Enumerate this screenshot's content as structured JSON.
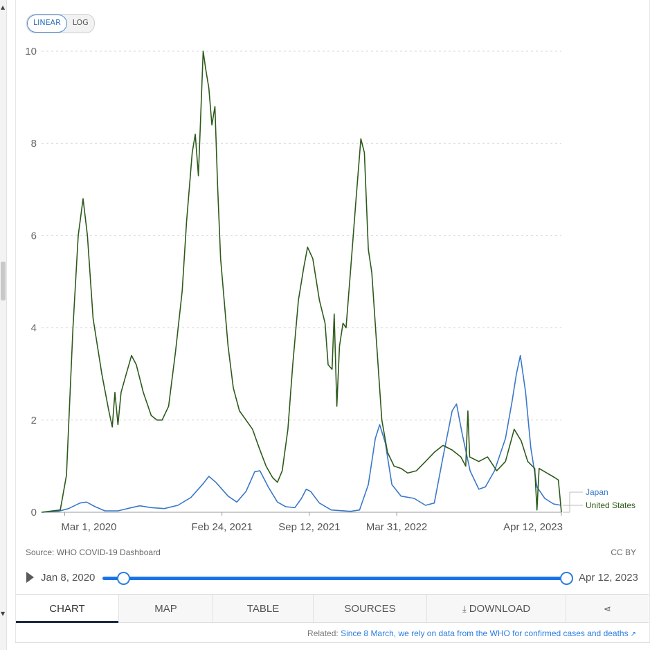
{
  "scale_toggle": {
    "linear_label": "LINEAR",
    "log_label": "LOG",
    "selected": "LINEAR"
  },
  "chart_data": {
    "type": "line",
    "title": "",
    "xlabel": "",
    "ylabel": "",
    "ylim": [
      0,
      10
    ],
    "yticks": [
      0,
      2,
      4,
      6,
      8,
      10
    ],
    "x_ticks": [
      {
        "date": "2020-03-01",
        "label": "Mar 1, 2020"
      },
      {
        "date": "2021-02-24",
        "label": "Feb 24, 2021"
      },
      {
        "date": "2021-09-12",
        "label": "Sep 12, 2021"
      },
      {
        "date": "2022-03-31",
        "label": "Mar 31, 2022"
      },
      {
        "date": "2023-04-12",
        "label": "Apr 12, 2023"
      }
    ],
    "xlim": [
      "2020-01-08",
      "2023-04-12"
    ],
    "grid": "horizontal-dotted",
    "series": [
      {
        "name": "United States",
        "color": "#2d5a1b",
        "points": [
          [
            "2020-01-08",
            0
          ],
          [
            "2020-02-20",
            0.05
          ],
          [
            "2020-03-05",
            0.8
          ],
          [
            "2020-03-20",
            4.0
          ],
          [
            "2020-04-01",
            6.0
          ],
          [
            "2020-04-12",
            6.8
          ],
          [
            "2020-04-22",
            6.0
          ],
          [
            "2020-05-05",
            4.2
          ],
          [
            "2020-05-25",
            3.0
          ],
          [
            "2020-06-10",
            2.2
          ],
          [
            "2020-06-18",
            1.85
          ],
          [
            "2020-06-24",
            2.6
          ],
          [
            "2020-07-01",
            1.9
          ],
          [
            "2020-07-08",
            2.6
          ],
          [
            "2020-07-20",
            3.0
          ],
          [
            "2020-08-01",
            3.4
          ],
          [
            "2020-08-12",
            3.2
          ],
          [
            "2020-08-28",
            2.6
          ],
          [
            "2020-09-15",
            2.1
          ],
          [
            "2020-09-28",
            2.0
          ],
          [
            "2020-10-10",
            2.0
          ],
          [
            "2020-10-25",
            2.3
          ],
          [
            "2020-11-10",
            3.5
          ],
          [
            "2020-11-25",
            4.8
          ],
          [
            "2020-12-05",
            6.3
          ],
          [
            "2020-12-18",
            7.8
          ],
          [
            "2020-12-25",
            8.2
          ],
          [
            "2021-01-01",
            7.3
          ],
          [
            "2021-01-06",
            8.5
          ],
          [
            "2021-01-12",
            10.0
          ],
          [
            "2021-01-18",
            9.6
          ],
          [
            "2021-01-25",
            9.2
          ],
          [
            "2021-02-01",
            8.4
          ],
          [
            "2021-02-08",
            8.8
          ],
          [
            "2021-02-14",
            7.1
          ],
          [
            "2021-02-21",
            5.5
          ],
          [
            "2021-03-01",
            4.6
          ],
          [
            "2021-03-10",
            3.6
          ],
          [
            "2021-03-22",
            2.7
          ],
          [
            "2021-04-05",
            2.2
          ],
          [
            "2021-04-20",
            2.0
          ],
          [
            "2021-05-05",
            1.8
          ],
          [
            "2021-05-20",
            1.4
          ],
          [
            "2021-06-05",
            1.0
          ],
          [
            "2021-06-20",
            0.75
          ],
          [
            "2021-07-01",
            0.65
          ],
          [
            "2021-07-12",
            0.9
          ],
          [
            "2021-07-25",
            1.8
          ],
          [
            "2021-08-05",
            3.2
          ],
          [
            "2021-08-18",
            4.6
          ],
          [
            "2021-08-30",
            5.3
          ],
          [
            "2021-09-08",
            5.75
          ],
          [
            "2021-09-20",
            5.5
          ],
          [
            "2021-10-05",
            4.6
          ],
          [
            "2021-10-18",
            4.1
          ],
          [
            "2021-10-25",
            3.2
          ],
          [
            "2021-11-03",
            3.1
          ],
          [
            "2021-11-08",
            4.3
          ],
          [
            "2021-11-14",
            2.3
          ],
          [
            "2021-11-20",
            3.6
          ],
          [
            "2021-11-28",
            4.1
          ],
          [
            "2021-12-05",
            4.0
          ],
          [
            "2021-12-15",
            5.2
          ],
          [
            "2021-12-28",
            6.8
          ],
          [
            "2022-01-08",
            8.1
          ],
          [
            "2022-01-16",
            7.8
          ],
          [
            "2022-01-25",
            5.7
          ],
          [
            "2022-02-02",
            5.2
          ],
          [
            "2022-02-12",
            3.8
          ],
          [
            "2022-02-25",
            2.0
          ],
          [
            "2022-03-10",
            1.3
          ],
          [
            "2022-03-25",
            1.0
          ],
          [
            "2022-04-10",
            0.95
          ],
          [
            "2022-04-25",
            0.85
          ],
          [
            "2022-05-15",
            0.9
          ],
          [
            "2022-06-05",
            1.1
          ],
          [
            "2022-06-25",
            1.3
          ],
          [
            "2022-07-15",
            1.45
          ],
          [
            "2022-08-05",
            1.35
          ],
          [
            "2022-08-25",
            1.2
          ],
          [
            "2022-09-05",
            1.0
          ],
          [
            "2022-09-10",
            2.2
          ],
          [
            "2022-09-14",
            1.2
          ],
          [
            "2022-10-05",
            1.1
          ],
          [
            "2022-10-25",
            1.2
          ],
          [
            "2022-11-15",
            0.9
          ],
          [
            "2022-12-05",
            1.1
          ],
          [
            "2022-12-25",
            1.8
          ],
          [
            "2023-01-10",
            1.55
          ],
          [
            "2023-01-25",
            1.1
          ],
          [
            "2023-02-10",
            0.95
          ],
          [
            "2023-02-15",
            0.05
          ],
          [
            "2023-02-20",
            0.95
          ],
          [
            "2023-03-10",
            0.85
          ],
          [
            "2023-03-28",
            0.75
          ],
          [
            "2023-04-05",
            0.7
          ],
          [
            "2023-04-12",
            0.0
          ]
        ]
      },
      {
        "name": "Japan",
        "color": "#3a78c9",
        "points": [
          [
            "2020-01-08",
            0
          ],
          [
            "2020-02-15",
            0.02
          ],
          [
            "2020-03-10",
            0.08
          ],
          [
            "2020-04-05",
            0.2
          ],
          [
            "2020-04-20",
            0.22
          ],
          [
            "2020-05-10",
            0.12
          ],
          [
            "2020-06-01",
            0.03
          ],
          [
            "2020-07-01",
            0.03
          ],
          [
            "2020-08-01",
            0.1
          ],
          [
            "2020-08-20",
            0.14
          ],
          [
            "2020-09-15",
            0.1
          ],
          [
            "2020-10-15",
            0.08
          ],
          [
            "2020-11-15",
            0.15
          ],
          [
            "2020-12-15",
            0.32
          ],
          [
            "2021-01-12",
            0.62
          ],
          [
            "2021-01-25",
            0.78
          ],
          [
            "2021-02-10",
            0.65
          ],
          [
            "2021-03-10",
            0.35
          ],
          [
            "2021-03-30",
            0.22
          ],
          [
            "2021-04-20",
            0.45
          ],
          [
            "2021-05-10",
            0.88
          ],
          [
            "2021-05-22",
            0.9
          ],
          [
            "2021-06-10",
            0.55
          ],
          [
            "2021-07-01",
            0.22
          ],
          [
            "2021-07-20",
            0.12
          ],
          [
            "2021-08-10",
            0.1
          ],
          [
            "2021-08-25",
            0.3
          ],
          [
            "2021-09-05",
            0.5
          ],
          [
            "2021-09-15",
            0.45
          ],
          [
            "2021-10-05",
            0.2
          ],
          [
            "2021-11-01",
            0.05
          ],
          [
            "2021-12-15",
            0.02
          ],
          [
            "2022-01-05",
            0.05
          ],
          [
            "2022-01-25",
            0.6
          ],
          [
            "2022-02-10",
            1.6
          ],
          [
            "2022-02-20",
            1.9
          ],
          [
            "2022-03-05",
            1.5
          ],
          [
            "2022-03-20",
            0.6
          ],
          [
            "2022-04-10",
            0.35
          ],
          [
            "2022-05-10",
            0.3
          ],
          [
            "2022-06-05",
            0.15
          ],
          [
            "2022-06-25",
            0.2
          ],
          [
            "2022-07-15",
            1.2
          ],
          [
            "2022-08-05",
            2.2
          ],
          [
            "2022-08-15",
            2.35
          ],
          [
            "2022-08-28",
            1.7
          ],
          [
            "2022-09-15",
            0.9
          ],
          [
            "2022-10-05",
            0.5
          ],
          [
            "2022-10-20",
            0.55
          ],
          [
            "2022-11-10",
            0.9
          ],
          [
            "2022-12-05",
            1.6
          ],
          [
            "2022-12-20",
            2.4
          ],
          [
            "2022-12-30",
            3.0
          ],
          [
            "2023-01-08",
            3.4
          ],
          [
            "2023-01-20",
            2.6
          ],
          [
            "2023-02-01",
            1.4
          ],
          [
            "2023-02-15",
            0.55
          ],
          [
            "2023-03-05",
            0.3
          ],
          [
            "2023-03-25",
            0.18
          ],
          [
            "2023-04-12",
            0.15
          ]
        ]
      }
    ],
    "legend": "right-end-labels"
  },
  "footer": {
    "source": "Source: WHO COVID-19 Dashboard",
    "license": "CC BY"
  },
  "timeline": {
    "start_label": "Jan 8, 2020",
    "end_label": "Apr 12, 2023",
    "start_fraction": 0.0,
    "end_fraction": 1.0
  },
  "tabs": [
    {
      "label": "CHART",
      "active": true
    },
    {
      "label": "MAP"
    },
    {
      "label": "TABLE"
    },
    {
      "label": "SOURCES"
    },
    {
      "label": "DOWNLOAD",
      "icon": "download-icon"
    },
    {
      "label": "",
      "icon": "share-icon"
    }
  ],
  "related": {
    "prefix": "Related:",
    "link_text": "Since 8 March, we rely on data from the WHO for confirmed cases and deaths"
  }
}
